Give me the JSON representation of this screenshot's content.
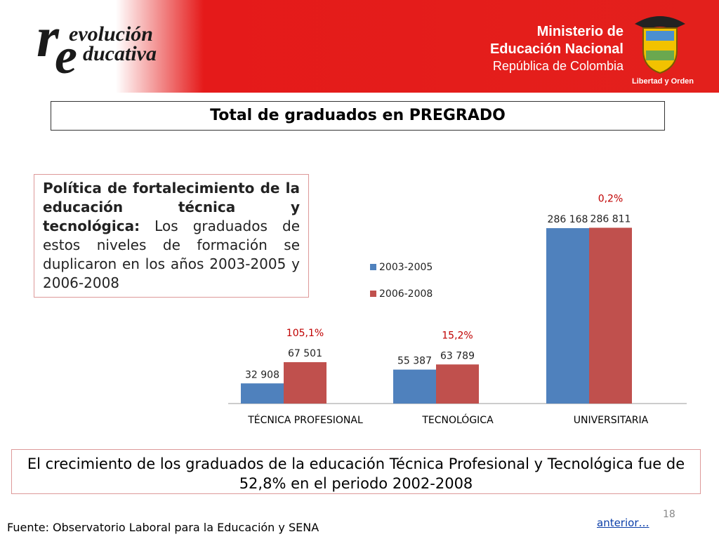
{
  "header": {
    "logo": [
      "r",
      "evolución",
      "e",
      "ducativa"
    ],
    "ministry": [
      "Ministerio de",
      "Educación Nacional",
      "República de Colombia"
    ],
    "motto": "Libertad y Orden"
  },
  "title": "Total de graduados en PREGRADO",
  "note": {
    "lead": "Política de fortalecimiento de la educación técnica y tecnológica:",
    "text": " Los graduados de estos niveles de formación se duplicaron en los años 2003-2005 y 2006-2008"
  },
  "chart_data": {
    "type": "bar",
    "categories": [
      "TÉCNICA PROFESIONAL",
      "TECNOLÓGICA",
      "UNIVERSITARIA"
    ],
    "series": [
      {
        "name": "2003-2005",
        "color": "#4f81bd",
        "values": [
          32908,
          55387,
          286168
        ],
        "value_labels": [
          "32 908",
          "55 387",
          "286 168"
        ]
      },
      {
        "name": "2006-2008",
        "color": "#c0504d",
        "values": [
          67501,
          63789,
          286811
        ],
        "value_labels": [
          "67 501",
          "63 789",
          "286 811"
        ]
      }
    ],
    "annotations": [
      "105,1%",
      "15,2%",
      "0,2%"
    ],
    "annotation_color": "#c00000",
    "ylim": [
      0,
      300000
    ]
  },
  "footer": {
    "text": "El crecimiento de los graduados de la educación Técnica Profesional y Tecnológica fue de 52,8% en el periodo 2002-2008",
    "source_label": "Fuente:",
    "source": " Observatorio Laboral para la Educación y SENA",
    "page": "18",
    "link": "anterior…"
  }
}
